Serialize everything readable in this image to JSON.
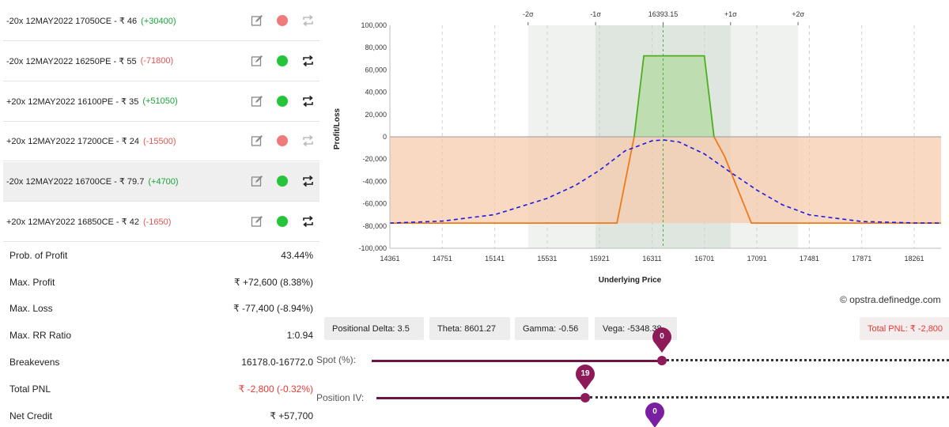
{
  "legs": [
    {
      "text": "-20x  12MAY2022  17050CE  - ₹ 46",
      "pnl": "(+30400)",
      "pnl_sign": "pos",
      "status": "red",
      "active": false
    },
    {
      "text": "-20x  12MAY2022  16250PE  - ₹ 55",
      "pnl": "(-71800)",
      "pnl_sign": "neg",
      "status": "green",
      "active": false
    },
    {
      "text": "+20x  12MAY2022  16100PE  - ₹ 35",
      "pnl": "(+51050)",
      "pnl_sign": "pos",
      "status": "green",
      "active": false
    },
    {
      "text": "+20x  12MAY2022  17200CE  - ₹ 24",
      "pnl": "(-15500)",
      "pnl_sign": "neg",
      "status": "red",
      "active": false
    },
    {
      "text": "-20x  12MAY2022  16700CE  - ₹ 79.7",
      "pnl": "(+4700)",
      "pnl_sign": "pos",
      "status": "green",
      "active": true
    },
    {
      "text": "+20x  12MAY2022  16850CE  - ₹ 42",
      "pnl": "(-1650)",
      "pnl_sign": "neg",
      "status": "green",
      "active": false
    }
  ],
  "stats": [
    {
      "label": "Prob. of Profit",
      "value": "43.44%",
      "neg": false
    },
    {
      "label": "Max. Profit",
      "value": "₹ +72,600 (8.38%)",
      "neg": false
    },
    {
      "label": "Max. Loss",
      "value": "₹ -77,400 (-8.94%)",
      "neg": false
    },
    {
      "label": "Max. RR Ratio",
      "value": "1:0.94",
      "neg": false
    },
    {
      "label": "Breakevens",
      "value": "16178.0-16772.0",
      "neg": false
    },
    {
      "label": "Total PNL",
      "value": "₹ -2,800 (-0.32%)",
      "neg": true
    },
    {
      "label": "Net Credit",
      "value": "₹ +57,700",
      "neg": false
    }
  ],
  "chart_data": {
    "type": "line",
    "xlabel": "Underlying Price",
    "ylabel": "Profit/Loss",
    "xlim": [
      14361,
      18461
    ],
    "ylim": [
      -100000,
      100000
    ],
    "x_ticks": [
      "14361",
      "14751",
      "15141",
      "15531",
      "15921",
      "16311",
      "16701",
      "17091",
      "17481",
      "17871",
      "18261"
    ],
    "y_ticks": [
      "100,000",
      "80,000",
      "60,000",
      "40,000",
      "20,000",
      "0",
      "-20,000",
      "-40,000",
      "-60,000",
      "-80,000",
      "-100,000"
    ],
    "top_labels": [
      {
        "label": "-2σ",
        "x": 15389
      },
      {
        "label": "-1σ",
        "x": 15891
      },
      {
        "label": "16393.15",
        "x": 16393.15
      },
      {
        "label": "+1σ",
        "x": 16895
      },
      {
        "label": "+2σ",
        "x": 17397
      }
    ],
    "spot": 16393.15,
    "series": [
      {
        "style": "expiry-payoff",
        "color_profit": "#4caf1e",
        "color_loss": "#f07a1a",
        "x": [
          14361,
          16050,
          16100,
          16250,
          16700,
          16850,
          17050,
          17200,
          18461
        ],
        "y": [
          -77400,
          -77400,
          -77400,
          72600,
          72600,
          -17400,
          -77400,
          -77400,
          -77400
        ]
      },
      {
        "style": "target-day",
        "color": "#1a1ae6",
        "x": [
          14361,
          14751,
          15141,
          15531,
          15741,
          15921,
          16111,
          16311,
          16393,
          16511,
          16701,
          16891,
          17091,
          17281,
          17481,
          17871,
          18261,
          18461
        ],
        "y": [
          -77400,
          -75600,
          -69800,
          -55200,
          -43600,
          -30000,
          -12600,
          -3600,
          -2800,
          -4600,
          -15400,
          -31500,
          -47800,
          -61000,
          -70000,
          -76000,
          -77300,
          -77400
        ]
      }
    ],
    "grid": true
  },
  "credit": "© opstra.definedge.com",
  "greeks": {
    "delta": "Positional Delta: 3.5",
    "theta": "Theta: 8601.27",
    "gamma": "Gamma: -0.56",
    "vega": "Vega: -5348.38",
    "total_pnl": "Total PNL: ₹ -2,800"
  },
  "sliders": {
    "spot_label": "Spot (%):",
    "spot_value": "0",
    "iv_label": "Position IV:",
    "iv_value": "19",
    "third_value": "0"
  },
  "colors": {
    "accent": "#8e1a5a",
    "profit": "#4caf1e",
    "loss": "#f07a1a",
    "status_green": "#26c43b",
    "status_red": "#ee7a7a"
  }
}
